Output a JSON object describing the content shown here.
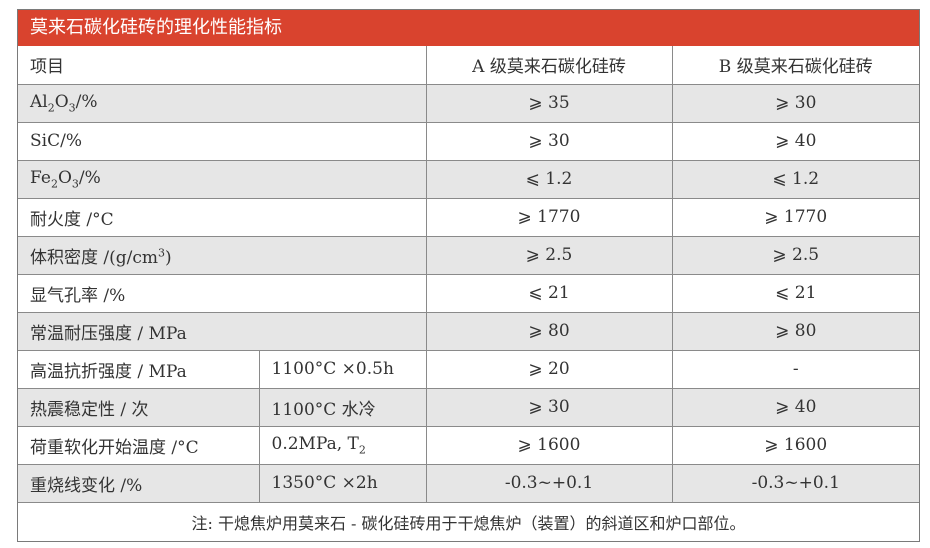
{
  "title": "莫来石碳化硅砖的理化性能指标",
  "headers": {
    "item": "项目",
    "grade_a": "A 级莫来石碳化硅砖",
    "grade_b": "B 级莫来石碳化硅砖"
  },
  "rows": [
    {
      "label_pre": "Al",
      "label_sub1": "2",
      "label_mid": "O",
      "label_sub2": "3",
      "label_post": "/%",
      "a": "⩾ 35",
      "b": "⩾ 30"
    },
    {
      "label": "SiC/%",
      "a": "⩾ 30",
      "b": "⩾ 40"
    },
    {
      "label_pre": "Fe",
      "label_sub1": "2",
      "label_mid": "O",
      "label_sub2": "3",
      "label_post": "/%",
      "a": "⩽ 1.2",
      "b": "⩽ 1.2"
    },
    {
      "label": "耐火度 /°C",
      "a": "⩾ 1770",
      "b": "⩾ 1770"
    },
    {
      "label_pre": "体积密度 /(g/cm",
      "label_sup": "3",
      "label_post": ")",
      "a": "⩾ 2.5",
      "b": "⩾ 2.5"
    },
    {
      "label": "显气孔率 /%",
      "a": "⩽ 21",
      "b": "⩽ 21"
    },
    {
      "label": "常温耐压强度 / MPa",
      "a": "⩾ 80",
      "b": "⩾ 80"
    },
    {
      "label": "高温抗折强度 / MPa",
      "cond": "1100°C ×0.5h",
      "a": "⩾ 20",
      "b": "-"
    },
    {
      "label": "热震稳定性 / 次",
      "cond": "1100°C 水冷",
      "a": "⩾ 30",
      "b": "⩾ 40"
    },
    {
      "label": "荷重软化开始温度 /°C",
      "cond_pre": "0.2MPa, T",
      "cond_sub": "2",
      "a": "⩾ 1600",
      "b": "⩾ 1600"
    },
    {
      "label": "重烧线变化 /%",
      "cond": "1350°C ×2h",
      "a": "-0.3~+0.1",
      "b": "-0.3~+0.1"
    }
  ],
  "note": "注: 干熄焦炉用莫来石 - 碳化硅砖用于干熄焦炉（装置）的斜道区和炉口部位。",
  "colors": {
    "title_bg": "#d9432e",
    "row_shade": "#e6e6e6"
  }
}
